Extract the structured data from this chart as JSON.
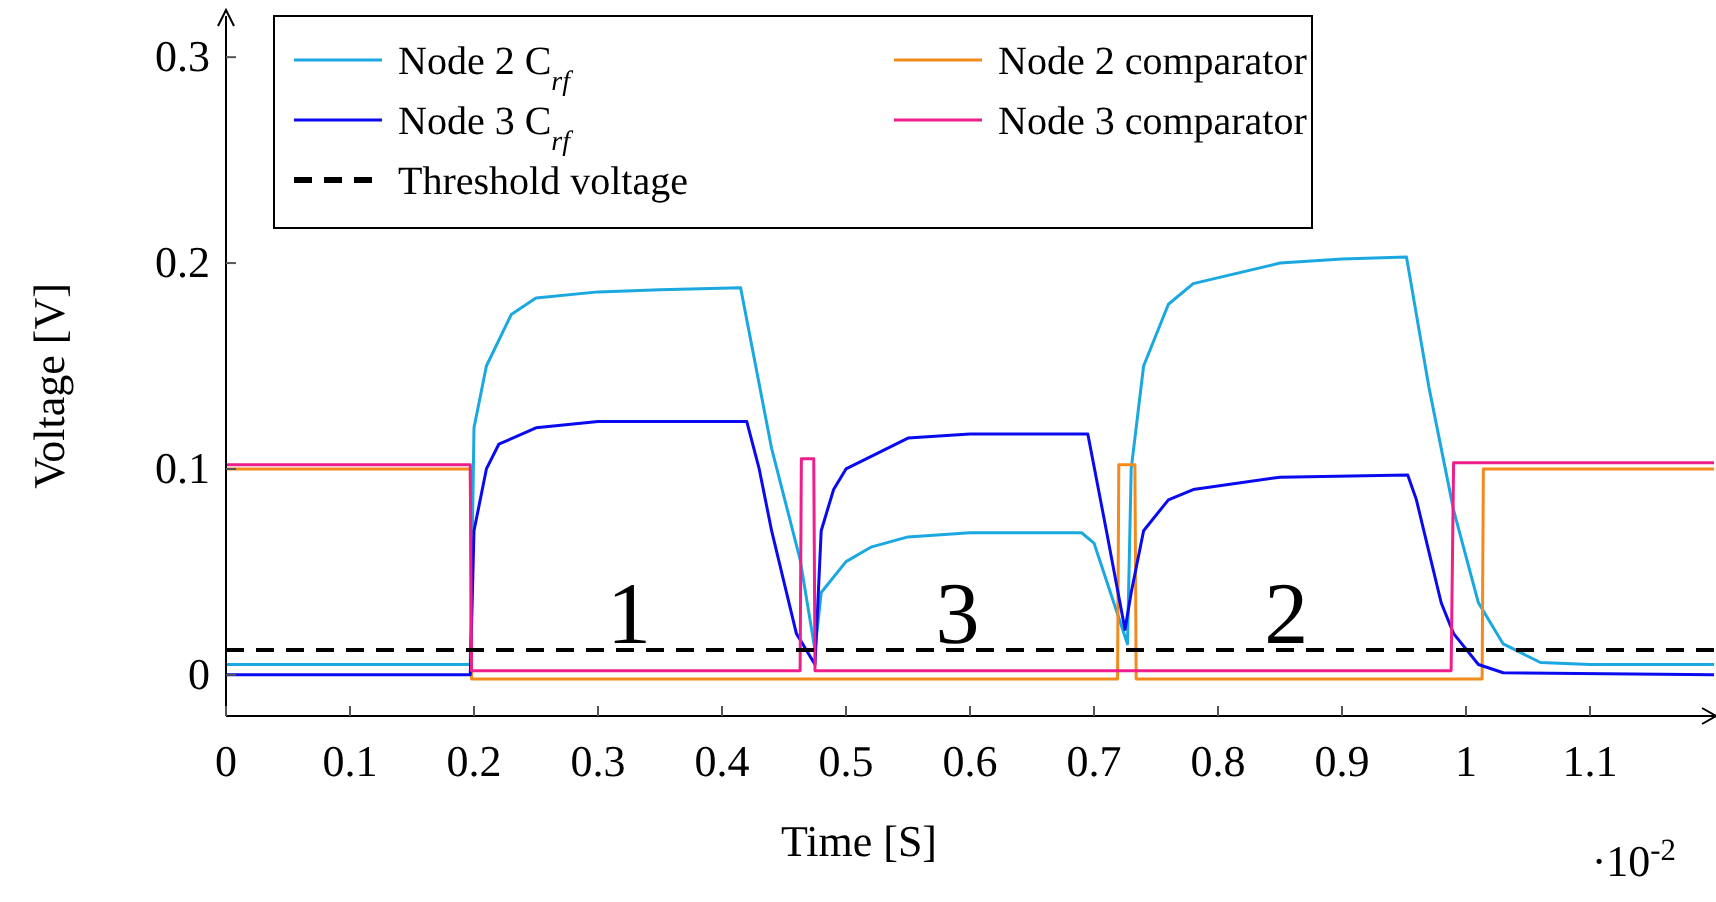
{
  "chart_data": {
    "type": "line",
    "xlabel": "Time [S]",
    "ylabel": "Voltage [V]",
    "xlim": [
      0,
      1.2
    ],
    "ylim": [
      -0.02,
      0.32
    ],
    "xticks": [
      0,
      0.1,
      0.2,
      0.3,
      0.4,
      0.5,
      0.6,
      0.7,
      0.8,
      0.9,
      1,
      1.1
    ],
    "yticks": [
      0,
      0.1,
      0.2,
      0.3
    ],
    "grid": false,
    "legend": "top left",
    "marker": "none",
    "series": [
      {
        "name": "Node 2 C$_{rf}$",
        "color": "#1ba8e0",
        "x": [
          0,
          0.197,
          0.2,
          0.21,
          0.23,
          0.25,
          0.3,
          0.35,
          0.415,
          0.44,
          0.463,
          0.475,
          0.48,
          0.5,
          0.52,
          0.55,
          0.6,
          0.69,
          0.7,
          0.727,
          0.73,
          0.74,
          0.76,
          0.78,
          0.85,
          0.9,
          0.952,
          0.97,
          0.99,
          1.01,
          1.03,
          1.06,
          1.1,
          1.2
        ],
        "values": [
          0.005,
          0.005,
          0.12,
          0.15,
          0.175,
          0.183,
          0.186,
          0.187,
          0.188,
          0.11,
          0.056,
          0.012,
          0.04,
          0.055,
          0.062,
          0.067,
          0.069,
          0.069,
          0.064,
          0.015,
          0.1,
          0.15,
          0.18,
          0.19,
          0.2,
          0.202,
          0.203,
          0.14,
          0.08,
          0.035,
          0.015,
          0.006,
          0.005,
          0.005
        ]
      },
      {
        "name": "Node 2 comparator",
        "color": "#f28a1c",
        "x": [
          0,
          0.197,
          0.198,
          0.719,
          0.72,
          0.733,
          0.734,
          1.013,
          1.014,
          1.2
        ],
        "values": [
          0.1,
          0.1,
          -0.002,
          -0.002,
          0.102,
          0.102,
          -0.002,
          -0.002,
          0.1,
          0.1
        ]
      },
      {
        "name": "Node 3 C$_{rf}$",
        "color": "#0a0aef",
        "x": [
          0,
          0.197,
          0.2,
          0.21,
          0.22,
          0.25,
          0.3,
          0.42,
          0.43,
          0.44,
          0.45,
          0.46,
          0.475,
          0.48,
          0.49,
          0.5,
          0.55,
          0.6,
          0.695,
          0.71,
          0.725,
          0.73,
          0.74,
          0.76,
          0.78,
          0.85,
          0.953,
          0.96,
          0.97,
          0.98,
          0.99,
          1.01,
          1.03,
          1.2
        ],
        "values": [
          0,
          0,
          0.07,
          0.1,
          0.112,
          0.12,
          0.123,
          0.123,
          0.1,
          0.07,
          0.045,
          0.02,
          0.005,
          0.07,
          0.09,
          0.1,
          0.115,
          0.117,
          0.117,
          0.07,
          0.022,
          0.04,
          0.07,
          0.085,
          0.09,
          0.096,
          0.097,
          0.085,
          0.06,
          0.035,
          0.02,
          0.005,
          0.001,
          0
        ]
      },
      {
        "name": "Node 3 comparator",
        "color": "#ee1e8c",
        "x": [
          0,
          0.197,
          0.198,
          0.463,
          0.464,
          0.474,
          0.475,
          0.988,
          0.99,
          1.2
        ],
        "values": [
          0.102,
          0.102,
          0.002,
          0.002,
          0.105,
          0.105,
          0.002,
          0.002,
          0.103,
          0.103
        ]
      },
      {
        "name": "Threshold voltage",
        "color": "#000000",
        "line_style": "dashed",
        "x": [
          0,
          1.2
        ],
        "values": [
          0.012,
          0.012
        ]
      }
    ],
    "annotations": [
      "1",
      "3",
      "2",
      "·10$^{-2}$"
    ]
  }
}
